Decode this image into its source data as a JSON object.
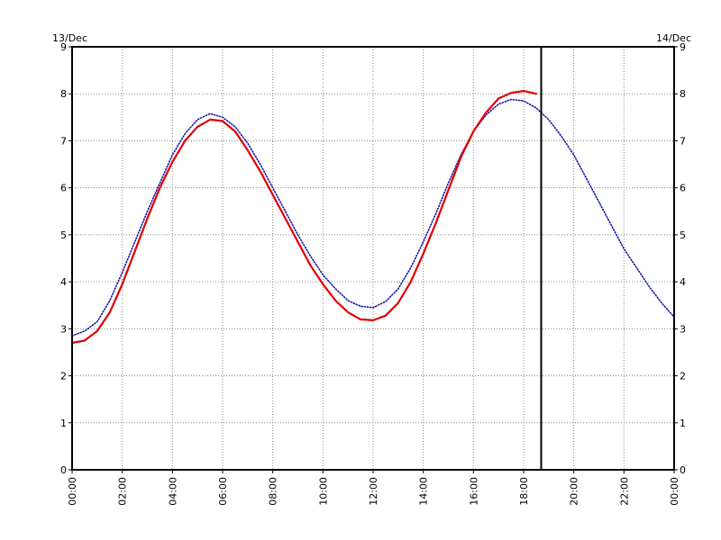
{
  "chart_data": {
    "type": "line",
    "date_labels": {
      "left": "13/Dec",
      "right": "14/Dec"
    },
    "xlim": [
      0,
      24
    ],
    "ylim": [
      0,
      9
    ],
    "y_ticks": [
      "0",
      "1",
      "2",
      "3",
      "4",
      "5",
      "6",
      "7",
      "8",
      "9"
    ],
    "x_ticks": [
      "00:00",
      "02:00",
      "04:00",
      "06:00",
      "08:00",
      "10:00",
      "12:00",
      "14:00",
      "16:00",
      "18:00",
      "20:00",
      "22:00",
      "00:00"
    ],
    "grid": true,
    "cursor_time": 18.7,
    "series": [
      {
        "color": "#1a1aa8",
        "style": "dotted",
        "x": [
          0,
          0.5,
          1,
          1.5,
          2,
          2.5,
          3,
          3.5,
          4,
          4.5,
          5,
          5.5,
          6,
          6.5,
          7,
          7.5,
          8,
          8.5,
          9,
          9.5,
          10,
          10.5,
          11,
          11.5,
          12,
          12.5,
          13,
          13.5,
          14,
          14.5,
          15,
          15.5,
          16,
          16.5,
          17,
          17.5,
          18,
          18.5,
          19,
          19.5,
          20,
          20.5,
          21,
          21.5,
          22,
          22.5,
          23,
          23.5,
          24
        ],
        "values": [
          2.85,
          2.95,
          3.15,
          3.6,
          4.2,
          4.85,
          5.5,
          6.1,
          6.7,
          7.15,
          7.45,
          7.58,
          7.5,
          7.3,
          6.95,
          6.5,
          6.0,
          5.5,
          5.0,
          4.55,
          4.15,
          3.85,
          3.6,
          3.48,
          3.45,
          3.58,
          3.85,
          4.3,
          4.85,
          5.45,
          6.1,
          6.7,
          7.2,
          7.55,
          7.78,
          7.88,
          7.85,
          7.7,
          7.45,
          7.1,
          6.7,
          6.2,
          5.7,
          5.2,
          4.7,
          4.3,
          3.9,
          3.55,
          3.25
        ]
      },
      {
        "color": "#e00000",
        "style": "solid",
        "x": [
          0,
          0.5,
          1,
          1.5,
          2,
          2.5,
          3,
          3.5,
          4,
          4.5,
          5,
          5.5,
          6,
          6.5,
          7,
          7.5,
          8,
          8.5,
          9,
          9.5,
          10,
          10.5,
          11,
          11.5,
          12,
          12.5,
          13,
          13.5,
          14,
          14.5,
          15,
          15.5,
          16,
          16.5,
          17,
          17.5,
          18,
          18.5
        ],
        "values": [
          2.7,
          2.75,
          2.95,
          3.35,
          3.95,
          4.65,
          5.35,
          6.0,
          6.55,
          7.0,
          7.3,
          7.45,
          7.42,
          7.2,
          6.8,
          6.35,
          5.85,
          5.35,
          4.85,
          4.35,
          3.95,
          3.6,
          3.35,
          3.2,
          3.18,
          3.28,
          3.55,
          4.0,
          4.6,
          5.25,
          5.95,
          6.65,
          7.2,
          7.6,
          7.9,
          8.02,
          8.06,
          8.0
        ]
      }
    ]
  }
}
